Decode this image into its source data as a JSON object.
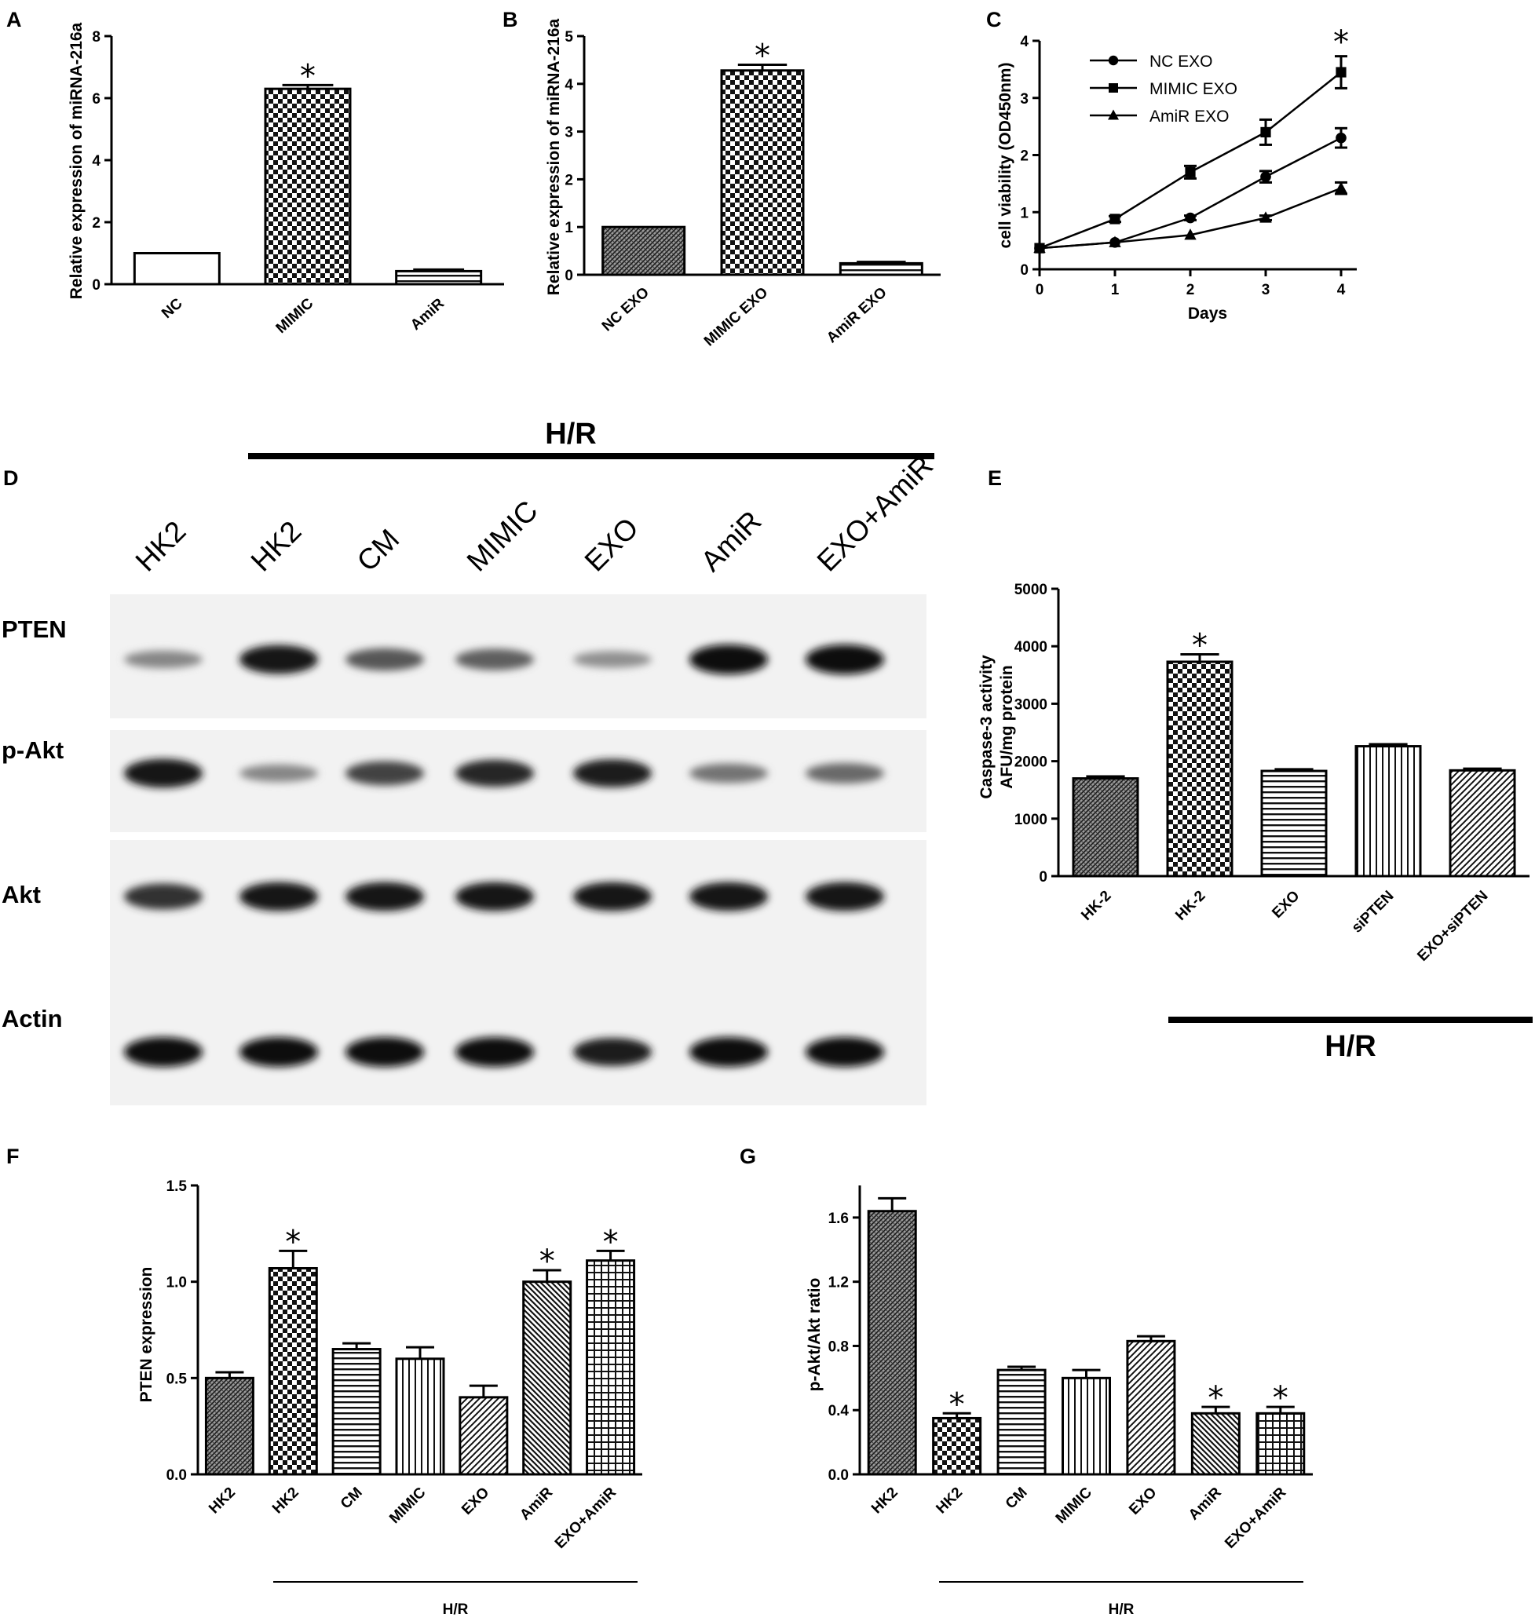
{
  "colors": {
    "ink": "#000000",
    "bg": "#ffffff",
    "blot_bg": "#f2f2f2",
    "band": "#151515"
  },
  "chart_data": [
    {
      "panel": "A",
      "type": "bar",
      "ylabel": "Relative expression of miRNA-216a",
      "xlabel": "",
      "categories": [
        "NC",
        "MIMIC",
        "AmiR"
      ],
      "values": [
        1.0,
        6.3,
        0.42
      ],
      "errors": [
        0,
        0.12,
        0.05
      ],
      "patterns": [
        "none",
        "checker",
        "hstripe"
      ],
      "significant": [
        false,
        true,
        false
      ],
      "ylim": [
        0,
        8
      ],
      "yticks": [
        "0",
        "2",
        "4",
        "6",
        "8"
      ],
      "grid": false
    },
    {
      "panel": "B",
      "type": "bar",
      "ylabel": "Relative expression of miRNA-216a",
      "xlabel": "",
      "categories": [
        "NC EXO",
        "MIMIC EXO",
        "AmiR EXO"
      ],
      "values": [
        1.0,
        4.28,
        0.24
      ],
      "errors": [
        0,
        0.12,
        0.03
      ],
      "patterns": [
        "dense",
        "checker",
        "hstripe"
      ],
      "significant": [
        false,
        true,
        false
      ],
      "ylim": [
        0,
        5
      ],
      "yticks": [
        "0",
        "1",
        "2",
        "3",
        "4",
        "5"
      ],
      "grid": false
    },
    {
      "panel": "C",
      "type": "line",
      "ylabel": "cell viability (OD450nm)",
      "xlabel": "Days",
      "x": [
        0,
        1,
        2,
        3,
        4
      ],
      "xticks": [
        "0",
        "1",
        "2",
        "3",
        "4"
      ],
      "series": [
        {
          "name": "NC EXO",
          "marker": "circle",
          "values": [
            0.37,
            0.47,
            0.9,
            1.62,
            2.3
          ],
          "errors": [
            0.02,
            0.03,
            0.04,
            0.1,
            0.17
          ]
        },
        {
          "name": "MIMIC EXO",
          "marker": "square",
          "values": [
            0.37,
            0.88,
            1.7,
            2.4,
            3.45
          ],
          "errors": [
            0.02,
            0.05,
            0.11,
            0.22,
            0.28
          ]
        },
        {
          "name": "AmiR EXO",
          "marker": "triangle",
          "values": [
            0.37,
            0.47,
            0.6,
            0.9,
            1.42
          ],
          "errors": [
            0.02,
            0.03,
            0.03,
            0.04,
            0.1
          ]
        }
      ],
      "significant_x": [
        4
      ],
      "ylim": [
        0,
        4
      ],
      "yticks": [
        "0",
        "1",
        "2",
        "3",
        "4"
      ],
      "legend": "top-left",
      "grid": false
    },
    {
      "panel": "E",
      "type": "bar",
      "ylabel_lines": [
        "Caspase-3 activity",
        "AFU/mg protein"
      ],
      "xlabel": "",
      "categories": [
        "HK-2",
        "HK-2",
        "EXO",
        "siPTEN",
        "EXO+siPTEN"
      ],
      "values": [
        1700,
        3730,
        1830,
        2260,
        1840
      ],
      "errors": [
        35,
        130,
        30,
        35,
        30
      ],
      "patterns": [
        "dense",
        "checker",
        "hstripe",
        "vstripe",
        "diag"
      ],
      "significant": [
        false,
        true,
        false,
        false,
        false
      ],
      "ylim": [
        0,
        5000
      ],
      "yticks": [
        "0",
        "1000",
        "2000",
        "3000",
        "4000",
        "5000"
      ],
      "grid": false,
      "group_label": "H/R",
      "group_start": 1
    },
    {
      "panel": "F",
      "type": "bar",
      "ylabel": "PTEN expression",
      "xlabel": "",
      "categories": [
        "HK2",
        "HK2",
        "CM",
        "MIMIC",
        "EXO",
        "AmiR",
        "EXO+AmiR"
      ],
      "values": [
        0.5,
        1.07,
        0.65,
        0.6,
        0.4,
        1.0,
        1.11
      ],
      "errors": [
        0.03,
        0.09,
        0.03,
        0.06,
        0.06,
        0.06,
        0.05
      ],
      "patterns": [
        "dense",
        "checker",
        "hstripe",
        "vstripe",
        "diag",
        "diag2",
        "grid"
      ],
      "significant": [
        false,
        true,
        false,
        false,
        false,
        true,
        true
      ],
      "ylim": [
        0,
        1.5
      ],
      "yticks": [
        "0.0",
        "0.5",
        "1.0",
        "1.5"
      ],
      "grid": false,
      "group_label": "H/R",
      "group_start": 1
    },
    {
      "panel": "G",
      "type": "bar",
      "ylabel": "p-Akt/Akt ratio",
      "xlabel": "",
      "categories": [
        "HK2",
        "HK2",
        "CM",
        "MIMIC",
        "EXO",
        "AmiR",
        "EXO+AmiR"
      ],
      "values": [
        1.64,
        0.35,
        0.65,
        0.6,
        0.83,
        0.38,
        0.38
      ],
      "errors": [
        0.08,
        0.03,
        0.02,
        0.05,
        0.03,
        0.04,
        0.04
      ],
      "patterns": [
        "dense",
        "checker",
        "hstripe",
        "vstripe",
        "diag",
        "diag2",
        "grid"
      ],
      "significant": [
        false,
        true,
        false,
        false,
        false,
        true,
        true
      ],
      "ylim": [
        0,
        1.8
      ],
      "yticks": [
        "0.0",
        "0.4",
        "0.8",
        "1.2",
        "1.6"
      ],
      "grid": false,
      "group_label": "H/R",
      "group_start": 1
    }
  ],
  "blot": {
    "panel": "D",
    "group_label": "H/R",
    "lanes": [
      "HK2",
      "HK2",
      "CM",
      "MIMIC",
      "EXO",
      "AmiR",
      "EXO+AmiR"
    ],
    "rows": [
      {
        "label": "PTEN",
        "intensity": [
          0.35,
          0.95,
          0.6,
          0.55,
          0.3,
          1.0,
          1.0
        ]
      },
      {
        "label": "p-Akt",
        "intensity": [
          0.95,
          0.35,
          0.7,
          0.85,
          0.9,
          0.45,
          0.5
        ]
      },
      {
        "label": "Akt",
        "intensity": [
          0.8,
          0.95,
          0.95,
          0.95,
          0.95,
          0.95,
          0.95
        ]
      },
      {
        "label": "Actin",
        "intensity": [
          1.0,
          1.0,
          1.0,
          1.0,
          0.9,
          1.0,
          1.0
        ]
      }
    ]
  }
}
